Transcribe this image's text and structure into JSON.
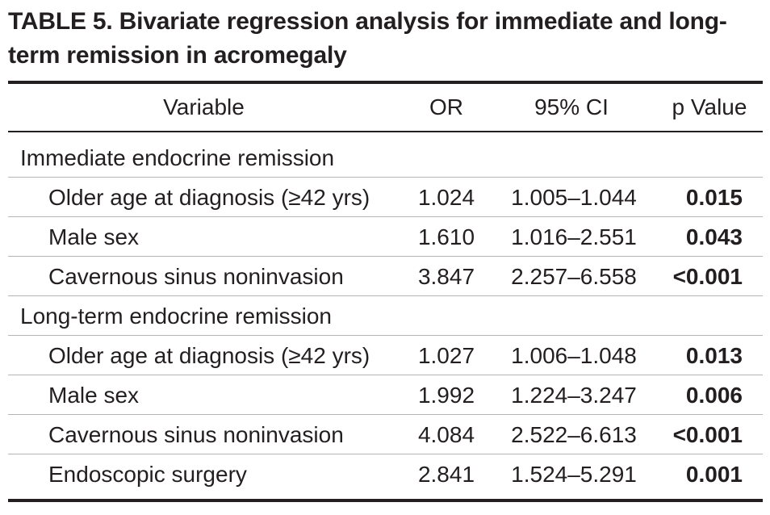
{
  "title": "TABLE 5. Bivariate regression analysis for immediate and long-term remission in acromegaly",
  "title_lines": [
    "TABLE 5. Bivariate regression analysis for immediate and long-",
    "term remission in acromegaly"
  ],
  "headers": {
    "variable": "Variable",
    "or": "OR",
    "ci": "95% CI",
    "p": "p Value"
  },
  "sections": [
    {
      "label": "Immediate endocrine remission",
      "rows": [
        {
          "variable": "Older age at diagnosis (≥42 yrs)",
          "or": "1.024",
          "ci": "1.005–1.044",
          "p": "0.015"
        },
        {
          "variable": "Male sex",
          "or": "1.610",
          "ci": "1.016–2.551",
          "p": "0.043"
        },
        {
          "variable": "Cavernous sinus noninvasion",
          "or": "3.847",
          "ci": "2.257–6.558",
          "p": "<0.001"
        }
      ]
    },
    {
      "label": "Long-term endocrine remission",
      "rows": [
        {
          "variable": "Older age at diagnosis (≥42 yrs)",
          "or": "1.027",
          "ci": "1.006–1.048",
          "p": "0.013"
        },
        {
          "variable": "Male sex",
          "or": "1.992",
          "ci": "1.224–3.247",
          "p": "0.006"
        },
        {
          "variable": "Cavernous sinus noninvasion",
          "or": "4.084",
          "ci": "2.522–6.613",
          "p": "<0.001"
        },
        {
          "variable": "Endoscopic surgery",
          "or": "2.841",
          "ci": "1.524–5.291",
          "p": "0.001"
        }
      ]
    }
  ]
}
